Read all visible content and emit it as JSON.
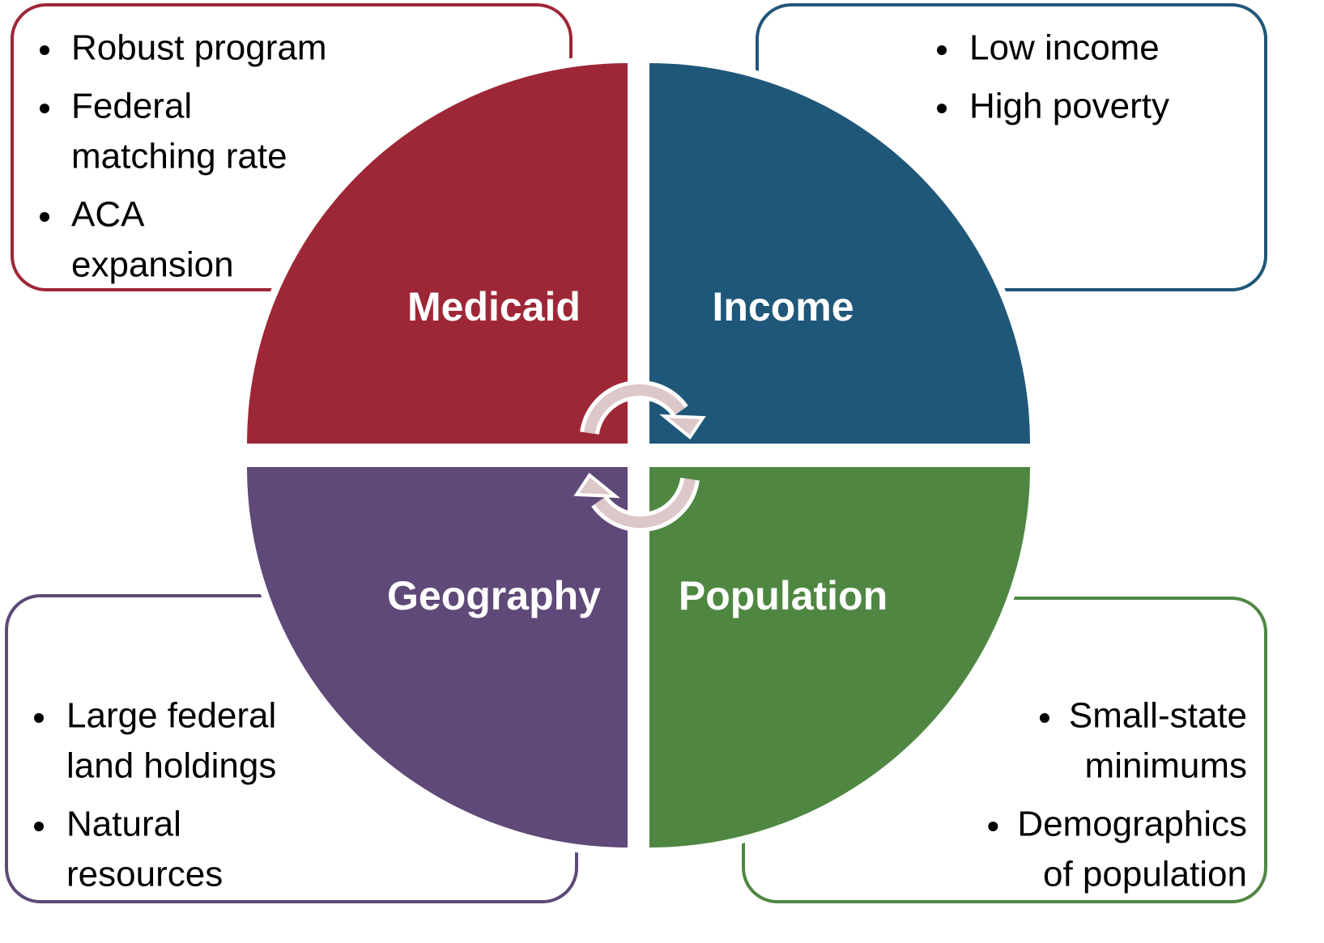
{
  "quadrants": [
    {
      "title": "Medicaid",
      "bullets": [
        [
          "Robust program"
        ],
        [
          "Federal",
          "matching rate"
        ],
        [
          "ACA",
          "expansion"
        ]
      ]
    },
    {
      "title": "Income",
      "bullets": [
        [
          "Low income"
        ],
        [
          "High poverty"
        ]
      ]
    },
    {
      "title": "Geography",
      "bullets": [
        [
          "Large federal",
          "land holdings"
        ],
        [
          "Natural",
          "resources"
        ]
      ]
    },
    {
      "title": "Population",
      "bullets": [
        [
          "Small-state",
          "minimums"
        ],
        [
          "Demographics",
          "of population"
        ]
      ]
    }
  ]
}
